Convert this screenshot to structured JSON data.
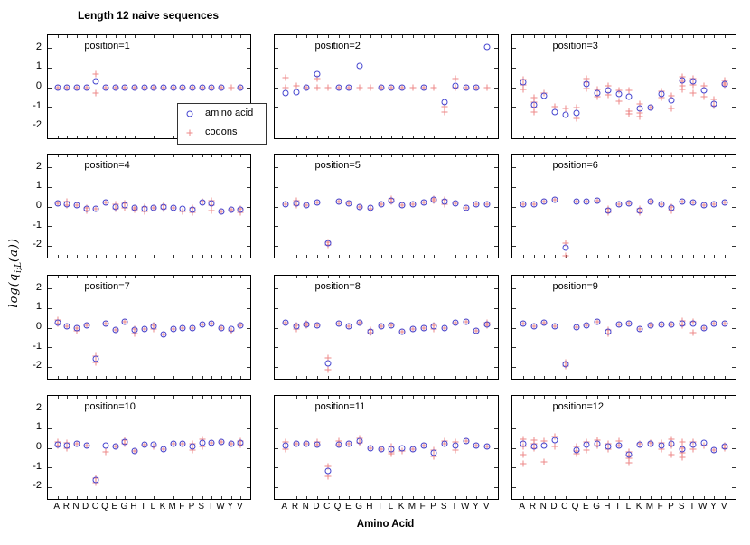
{
  "chart_data": {
    "type": "scatter",
    "title": "Length 12 naive sequences",
    "xlabel": "Amino Acid",
    "ylabel": "log(q_{i;L}(a))",
    "ylabel_parts": {
      "prefix": "log(q",
      "sub": "i;L",
      "suffix": "(a))"
    },
    "categories": [
      "A",
      "R",
      "N",
      "D",
      "C",
      "Q",
      "E",
      "G",
      "H",
      "I",
      "L",
      "K",
      "M",
      "F",
      "P",
      "S",
      "T",
      "W",
      "Y",
      "V"
    ],
    "yticks": [
      2,
      1,
      0,
      -1,
      -2
    ],
    "ylim": [
      -2.6,
      2.65
    ],
    "grid": false,
    "legend_position": "inside-first-panel",
    "colors": {
      "amino_acid": "#4545cf",
      "codons": "#e96b6b"
    },
    "legend": [
      {
        "marker": "circle",
        "label": "amino acid"
      },
      {
        "marker": "plus",
        "label": "codons"
      }
    ],
    "panels": [
      {
        "label": "position=1",
        "aa": [
          0,
          0,
          0,
          0,
          0.3,
          0,
          0,
          0,
          0,
          0,
          0,
          0,
          0,
          0,
          0,
          0,
          0,
          0,
          null,
          0
        ],
        "codons": [
          [
            0
          ],
          [
            0
          ],
          [
            0
          ],
          [
            0
          ],
          [
            0.65,
            -0.3
          ],
          [
            0
          ],
          [
            0
          ],
          [
            0
          ],
          [
            0
          ],
          [
            0
          ],
          [
            0
          ],
          [
            0
          ],
          [
            0
          ],
          [
            0
          ],
          [
            0
          ],
          [
            0
          ],
          [
            0
          ],
          [
            0
          ],
          [
            0
          ],
          [
            0
          ]
        ]
      },
      {
        "label": "position=2",
        "aa": [
          -0.3,
          -0.25,
          0,
          0.65,
          null,
          0,
          0,
          1.1,
          null,
          0,
          0,
          0,
          null,
          0,
          null,
          -0.75,
          0.05,
          0,
          0,
          2.05
        ],
        "codons": [
          [
            0.5,
            0
          ],
          [
            0.05
          ],
          [
            0
          ],
          [
            0.45,
            0
          ],
          [
            0
          ],
          [
            0
          ],
          [
            0
          ],
          [
            0
          ],
          [
            0
          ],
          [
            0
          ],
          [
            0
          ],
          [
            0
          ],
          [
            0
          ],
          [
            0
          ],
          [
            0
          ],
          [
            -1,
            -1.25
          ],
          [
            0.45,
            0
          ],
          [
            0
          ],
          [
            0
          ],
          [
            0
          ]
        ]
      },
      {
        "label": "position=3",
        "aa": [
          0.25,
          -0.9,
          -0.45,
          -1.25,
          -1.4,
          -1.3,
          0.15,
          -0.3,
          -0.15,
          -0.35,
          -0.5,
          -1.1,
          -1.05,
          -0.35,
          -0.65,
          0.35,
          0.3,
          -0.15,
          -0.85,
          0.15
        ],
        "codons": [
          [
            0.4,
            0.1,
            -0.1
          ],
          [
            -0.55,
            -0.75,
            -1.05,
            -1.25
          ],
          [
            -0.3
          ],
          [
            -1.0
          ],
          [
            -1.1
          ],
          [
            -1.05,
            -1.6
          ],
          [
            0.45,
            0.25,
            -0.05
          ],
          [
            -0.1,
            -0.5
          ],
          [
            0.05,
            -0.4
          ],
          [
            -0.15,
            -0.7
          ],
          [
            -0.15,
            -1.2,
            -1.35
          ],
          [
            -0.85,
            -1.3,
            -1.5
          ],
          [
            -1.05
          ],
          [
            -0.2,
            -0.55
          ],
          [
            -0.45,
            -1.1
          ],
          [
            0.55,
            0.3,
            0.05,
            -0.1
          ],
          [
            0.45,
            0.1,
            -0.3
          ],
          [
            0.05,
            -0.5
          ],
          [
            -0.6,
            -0.95
          ],
          [
            0.35,
            0.2,
            0.1
          ]
        ]
      },
      {
        "label": "position=4",
        "aa": [
          0.17,
          0.1,
          0.07,
          -0.13,
          -0.1,
          0.22,
          0,
          0.07,
          -0.05,
          -0.1,
          -0.07,
          0,
          -0.07,
          -0.1,
          -0.15,
          0.22,
          0.17,
          -0.25,
          -0.15,
          -0.17
        ],
        "codons": [
          [
            0.17
          ],
          [
            0.25,
            0.05
          ],
          [
            0.07
          ],
          [
            -0.05,
            -0.2
          ],
          [
            -0.1
          ],
          [
            0.22
          ],
          [
            0.1,
            -0.1
          ],
          [
            0.15,
            -0.05
          ],
          [
            -0.05,
            -0.15
          ],
          [
            0,
            -0.25
          ],
          [
            -0.07
          ],
          [
            0.05,
            -0.1
          ],
          [
            -0.07
          ],
          [
            -0.25
          ],
          [
            -0.05,
            -0.3
          ],
          [
            0.25
          ],
          [
            0.3,
            0.05,
            -0.2
          ],
          [
            -0.25
          ],
          [
            -0.15
          ],
          [
            -0.1,
            -0.3
          ]
        ]
      },
      {
        "label": "position=5",
        "aa": [
          0.12,
          0.15,
          0.08,
          0.22,
          -1.85,
          0.25,
          0.15,
          -0.02,
          -0.05,
          0.12,
          0.3,
          0.05,
          0.1,
          0.2,
          0.35,
          0.25,
          0.15,
          -0.08,
          0.1,
          0.12
        ],
        "codons": [
          [
            0.12
          ],
          [
            0.3,
            0.05
          ],
          [
            0.08
          ],
          [
            0.22
          ],
          [
            -1.8,
            -1.95
          ],
          [
            0.25
          ],
          [
            0.15
          ],
          [
            -0.02
          ],
          [
            -0.1
          ],
          [
            0.12
          ],
          [
            0.4,
            0.25
          ],
          [
            0.05
          ],
          [
            0.1
          ],
          [
            0.2
          ],
          [
            0.4,
            0.3
          ],
          [
            0.35,
            0.1
          ],
          [
            0.15
          ],
          [
            -0.08
          ],
          [
            0.1
          ],
          [
            0.12
          ]
        ]
      },
      {
        "label": "position=6",
        "aa": [
          0.12,
          0.1,
          0.25,
          0.33,
          -2.1,
          0.25,
          0.25,
          0.3,
          -0.2,
          0.1,
          0.17,
          -0.2,
          0.25,
          0.1,
          -0.08,
          0.25,
          0.22,
          0.05,
          0.1,
          0.2
        ],
        "codons": [
          [
            0.12
          ],
          [
            0.1
          ],
          [
            0.25
          ],
          [
            0.33
          ],
          [
            -1.85,
            -2.5
          ],
          [
            0.25
          ],
          [
            0.25
          ],
          [
            0.3
          ],
          [
            -0.1,
            -0.3
          ],
          [
            0.1
          ],
          [
            0.17
          ],
          [
            -0.1,
            -0.3
          ],
          [
            0.25
          ],
          [
            0.1
          ],
          [
            0,
            -0.2
          ],
          [
            0.25
          ],
          [
            0.22
          ],
          [
            0.05
          ],
          [
            0.1
          ],
          [
            0.2
          ]
        ]
      },
      {
        "label": "position=7",
        "aa": [
          0.27,
          0.07,
          0,
          0.13,
          -1.6,
          0.2,
          -0.1,
          0.28,
          -0.12,
          -0.05,
          0.05,
          -0.35,
          -0.05,
          0,
          0,
          0.17,
          0.2,
          0,
          -0.07,
          0.1
        ],
        "codons": [
          [
            0.4,
            0.2
          ],
          [
            0.07
          ],
          [
            0,
            -0.15
          ],
          [
            0.13
          ],
          [
            -1.45,
            -1.75
          ],
          [
            0.2
          ],
          [
            -0.1
          ],
          [
            0.28
          ],
          [
            -0.05,
            -0.3
          ],
          [
            -0.05
          ],
          [
            0.1,
            -0.05
          ],
          [
            -0.35
          ],
          [
            -0.05
          ],
          [
            0
          ],
          [
            0
          ],
          [
            0.17
          ],
          [
            0.2
          ],
          [
            0
          ],
          [
            -0.15
          ],
          [
            0.1
          ]
        ]
      },
      {
        "label": "position=8",
        "aa": [
          0.25,
          0.05,
          0.15,
          0.1,
          -1.8,
          0.2,
          0.05,
          0.27,
          -0.2,
          0.05,
          0.12,
          -0.22,
          -0.08,
          0,
          0.05,
          0,
          0.25,
          0.3,
          -0.15,
          0.17
        ],
        "codons": [
          [
            0.25
          ],
          [
            0.1,
            -0.05
          ],
          [
            0.2,
            0.1
          ],
          [
            0.1
          ],
          [
            -1.55,
            -2.15
          ],
          [
            0.2
          ],
          [
            0.05
          ],
          [
            0.27
          ],
          [
            -0.1,
            -0.25
          ],
          [
            0.05
          ],
          [
            0.12
          ],
          [
            -0.22
          ],
          [
            -0.08
          ],
          [
            0
          ],
          [
            0.1,
            -0.05
          ],
          [
            0
          ],
          [
            0.25
          ],
          [
            0.3
          ],
          [
            -0.15
          ],
          [
            0.25,
            0.1
          ]
        ]
      },
      {
        "label": "position=9",
        "aa": [
          0.2,
          0.08,
          0.25,
          0.08,
          -1.85,
          0.02,
          0.1,
          0.28,
          -0.22,
          0.15,
          0.2,
          -0.05,
          0.1,
          0.18,
          0.17,
          0.22,
          0.2,
          0,
          0.22,
          0.22
        ],
        "codons": [
          [
            0.2
          ],
          [
            0.08
          ],
          [
            0.25
          ],
          [
            0.08
          ],
          [
            -1.75,
            -1.95
          ],
          [
            0.02
          ],
          [
            0.1
          ],
          [
            0.28
          ],
          [
            -0.1,
            -0.3
          ],
          [
            0.15
          ],
          [
            0.2
          ],
          [
            -0.05
          ],
          [
            0.1
          ],
          [
            0.18
          ],
          [
            0.17
          ],
          [
            0.35,
            0.1
          ],
          [
            0.3,
            -0.25
          ],
          [
            0
          ],
          [
            0.22
          ],
          [
            0.22
          ]
        ]
      },
      {
        "label": "position=10",
        "aa": [
          0.15,
          0.12,
          0.2,
          0.12,
          -1.65,
          0.1,
          0.05,
          0.3,
          -0.15,
          0.15,
          0.15,
          -0.05,
          0.2,
          0.2,
          0.05,
          0.25,
          0.25,
          0.3,
          0.2,
          0.25
        ],
        "codons": [
          [
            0.3,
            0.1
          ],
          [
            0.25,
            0
          ],
          [
            0.2
          ],
          [
            0.12
          ],
          [
            -1.55,
            -1.75
          ],
          [
            -0.2
          ],
          [
            0.05
          ],
          [
            0.4,
            0.2
          ],
          [
            -0.15
          ],
          [
            0.15
          ],
          [
            0.05
          ],
          [
            -0.05
          ],
          [
            0.2
          ],
          [
            0.2
          ],
          [
            0.2,
            -0.1
          ],
          [
            0.45,
            0.05
          ],
          [
            0.25
          ],
          [
            0.3
          ],
          [
            0.2
          ],
          [
            0.35,
            0.15
          ]
        ]
      },
      {
        "label": "position=11",
        "aa": [
          0.1,
          0.2,
          0.2,
          0.15,
          -1.15,
          0.15,
          0.2,
          0.35,
          0,
          -0.05,
          -0.05,
          0,
          -0.05,
          0.1,
          -0.25,
          0.2,
          0.1,
          0.35,
          0.1,
          0.05
        ],
        "codons": [
          [
            0.3,
            -0.05
          ],
          [
            0.2
          ],
          [
            0.2
          ],
          [
            0.3,
            0.15
          ],
          [
            -0.95,
            -1.45
          ],
          [
            0.35,
            0.15
          ],
          [
            0.2
          ],
          [
            0.5,
            0.25
          ],
          [
            0
          ],
          [
            -0.05
          ],
          [
            0.05,
            -0.2,
            -0.3
          ],
          [
            -0.15
          ],
          [
            -0.05
          ],
          [
            0.1
          ],
          [
            -0.1,
            -0.45
          ],
          [
            0.35,
            0.2
          ],
          [
            0.3,
            -0.1
          ],
          [
            0.35
          ],
          [
            0.1
          ],
          [
            0.05
          ]
        ]
      },
      {
        "label": "position=12",
        "aa": [
          0.2,
          0.05,
          0.1,
          0.4,
          null,
          -0.1,
          0.15,
          0.2,
          0.05,
          0.1,
          -0.35,
          0.15,
          0.2,
          0.1,
          0.2,
          -0.05,
          0.15,
          0.25,
          -0.1,
          0.05
        ],
        "codons": [
          [
            0.45,
            0.05,
            -0.35,
            -0.8
          ],
          [
            0.4,
            0.2,
            0
          ],
          [
            0.35,
            -0.7
          ],
          [
            0.6,
            0.05
          ],
          [],
          [
            0.05,
            -0.15,
            -0.3
          ],
          [
            0.3,
            -0.1
          ],
          [
            0.4,
            0.1
          ],
          [
            0.2,
            -0.05
          ],
          [
            0.35,
            0.1
          ],
          [
            -0.2,
            -0.4,
            -0.55,
            -0.75
          ],
          [
            0.2
          ],
          [
            0.25
          ],
          [
            0.25,
            -0.05
          ],
          [
            0.45,
            0.1,
            -0.35
          ],
          [
            0.3,
            0,
            -0.25,
            -0.5
          ],
          [
            0.3,
            -0.05
          ],
          [
            0.1
          ],
          [
            -0.1
          ],
          [
            0.1,
            0
          ]
        ]
      }
    ]
  }
}
